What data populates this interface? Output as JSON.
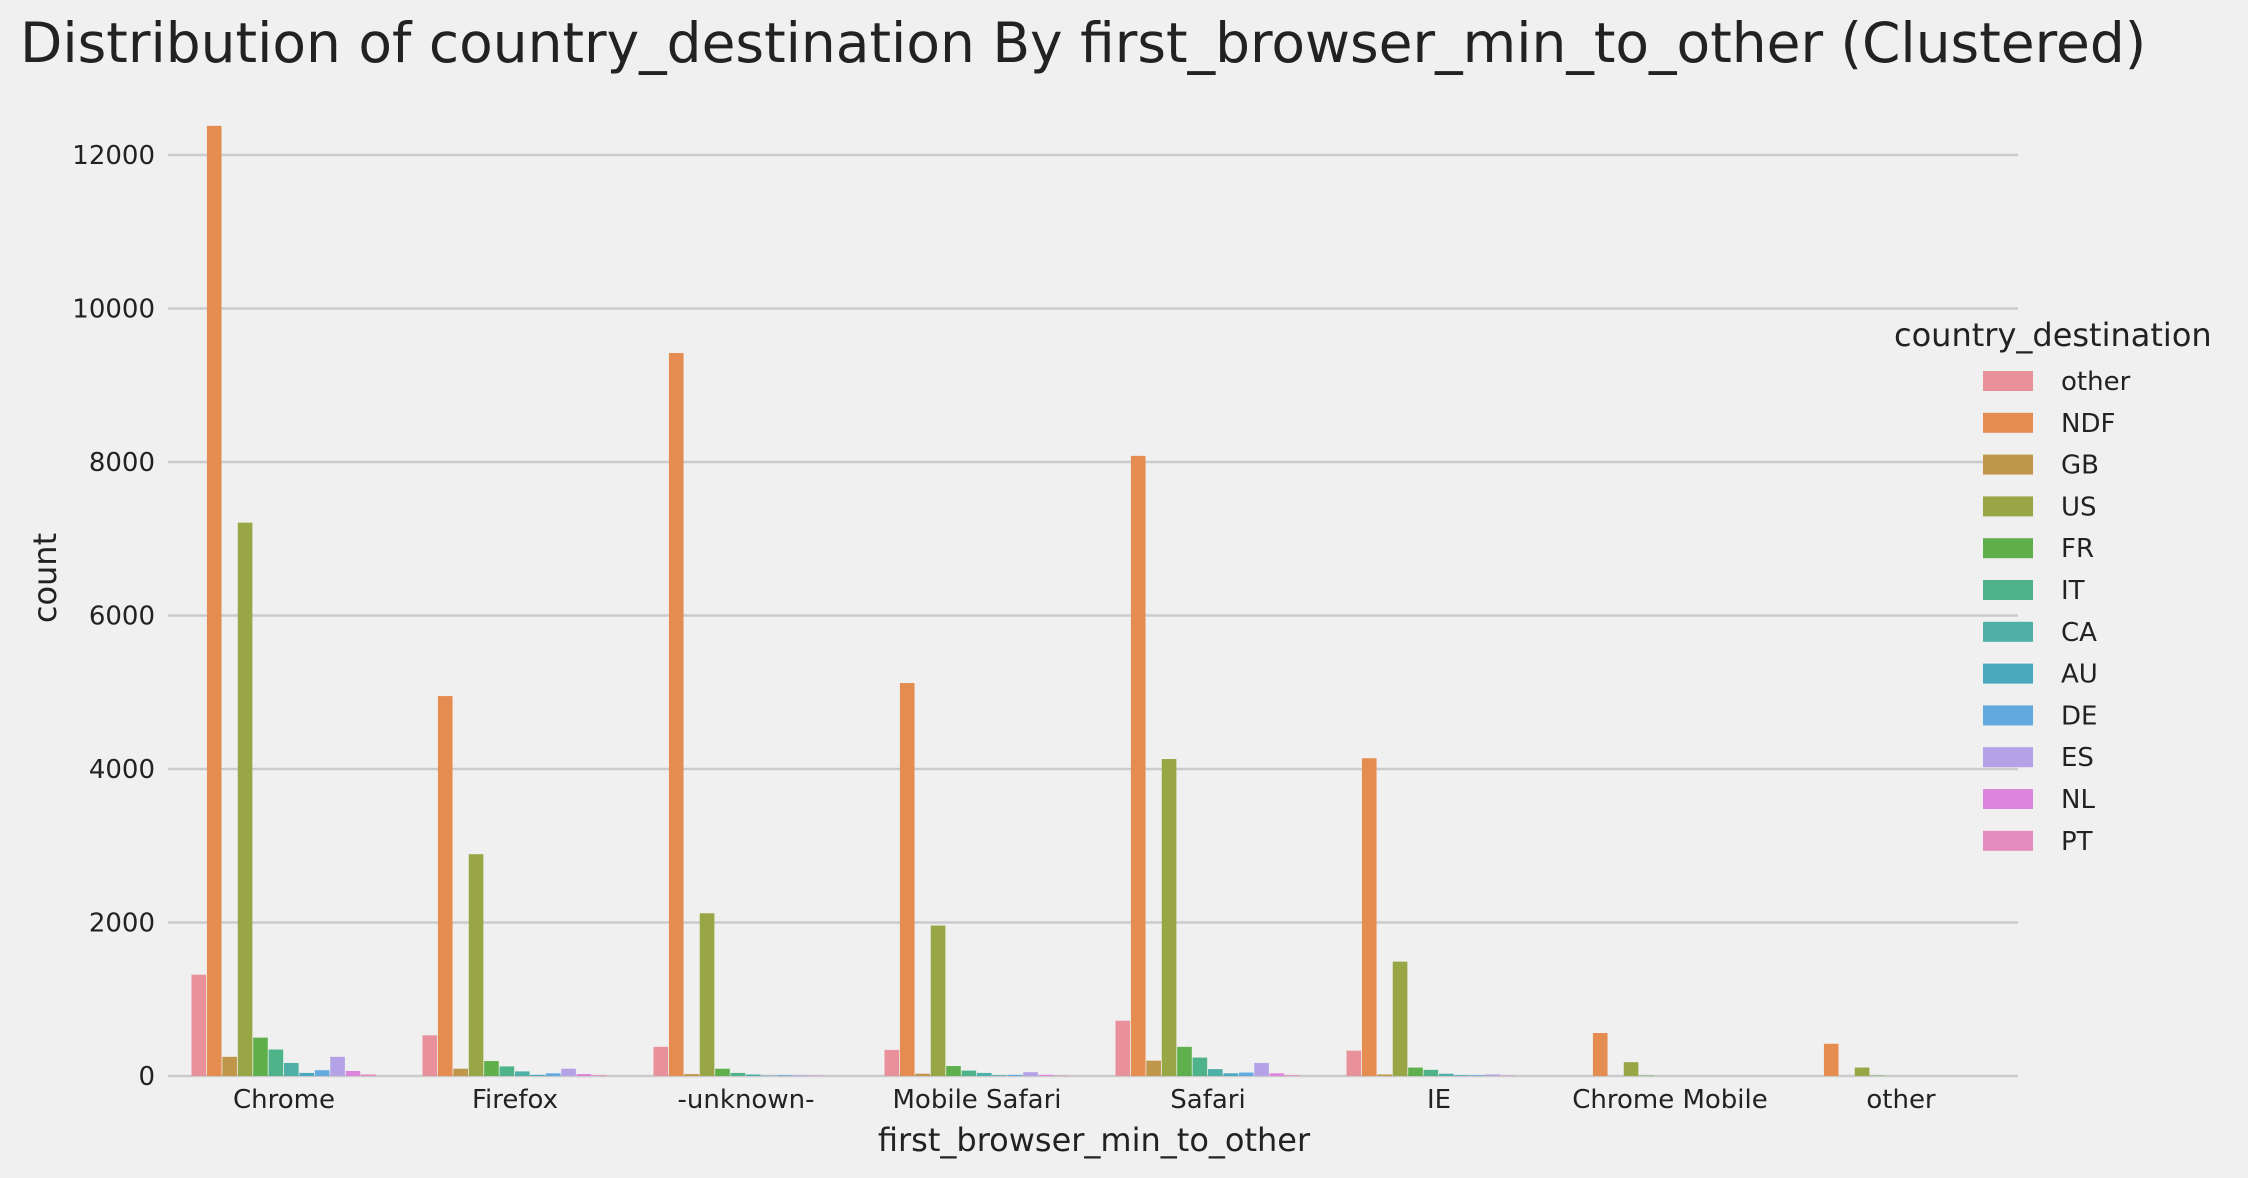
{
  "chart_data": {
    "type": "bar",
    "title": "Distribution of country_destination By first_browser_min_to_other (Clustered)",
    "xlabel": "first_browser_min_to_other",
    "ylabel": "count",
    "ylim": [
      0,
      12500
    ],
    "yticks": [
      "0",
      "2000",
      "4000",
      "6000",
      "8000",
      "10000",
      "12000"
    ],
    "ytick_values": [
      0,
      2000,
      4000,
      6000,
      8000,
      10000,
      12000
    ],
    "grid": "horizontal",
    "legend_title": "country_destination",
    "legend_position": "right",
    "categories": [
      "Chrome",
      "Firefox",
      "-unknown-",
      "Mobile Safari",
      "Safari",
      "IE",
      "Chrome Mobile",
      "other"
    ],
    "series": [
      {
        "name": "other",
        "color": "#e8919b",
        "values": [
          1320,
          530,
          380,
          340,
          720,
          330,
          0,
          0
        ]
      },
      {
        "name": "NDF",
        "color": "#e58c51",
        "values": [
          12380,
          4950,
          9420,
          5120,
          8080,
          4140,
          560,
          420
        ]
      },
      {
        "name": "GB",
        "color": "#c0964a",
        "values": [
          250,
          95,
          25,
          30,
          200,
          20,
          0,
          0
        ]
      },
      {
        "name": "US",
        "color": "#98a646",
        "values": [
          7210,
          2890,
          2120,
          1960,
          4130,
          1490,
          180,
          110
        ]
      },
      {
        "name": "FR",
        "color": "#5fb04c",
        "values": [
          500,
          195,
          95,
          130,
          380,
          110,
          5,
          5
        ]
      },
      {
        "name": "IT",
        "color": "#4fb389",
        "values": [
          345,
          125,
          40,
          70,
          240,
          80,
          0,
          0
        ]
      },
      {
        "name": "CA",
        "color": "#4fb0a8",
        "values": [
          170,
          60,
          20,
          40,
          90,
          30,
          0,
          0
        ]
      },
      {
        "name": "AU",
        "color": "#4aa8bf",
        "values": [
          40,
          15,
          5,
          10,
          35,
          10,
          0,
          0
        ]
      },
      {
        "name": "DE",
        "color": "#62a9e0",
        "values": [
          75,
          35,
          10,
          15,
          45,
          10,
          0,
          0
        ]
      },
      {
        "name": "ES",
        "color": "#b3a3e6",
        "values": [
          250,
          95,
          10,
          50,
          170,
          20,
          0,
          0
        ]
      },
      {
        "name": "NL",
        "color": "#dd84dc",
        "values": [
          65,
          25,
          5,
          15,
          35,
          5,
          0,
          0
        ]
      },
      {
        "name": "PT",
        "color": "#e68bbe",
        "values": [
          20,
          10,
          0,
          5,
          10,
          0,
          0,
          0
        ]
      }
    ]
  }
}
